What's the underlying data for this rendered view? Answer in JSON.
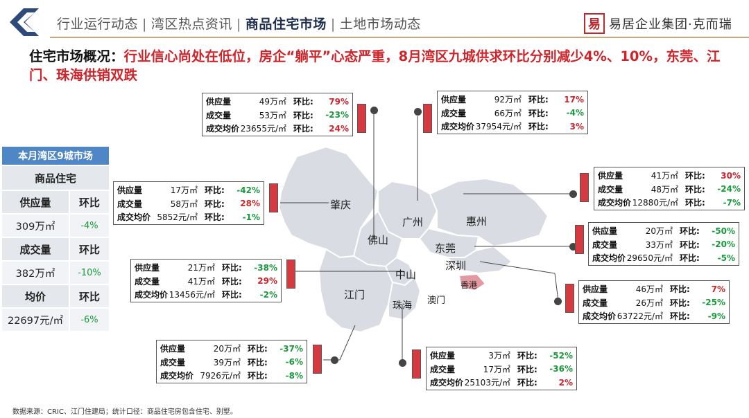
{
  "nav": {
    "items": [
      "行业运行动态",
      "湾区热点资讯",
      "商品住宅市场",
      "土地市场动态"
    ],
    "active_index": 2,
    "separator": "|"
  },
  "brand": {
    "seal": "易",
    "name": "易居企业集团·克而瑞"
  },
  "headline": {
    "lead": "住宅市场概况：",
    "body": "行业信心尚处在低位，房企“躺平”心态严重，8月湾区九城供求环比分别减少4%、10%，东莞、江门、珠海供销双跌"
  },
  "summary": {
    "title": "本月湾区9城市场",
    "subtitle": "商品住宅",
    "rows": [
      {
        "label": "供应量",
        "change_header": "环比",
        "value": "309万㎡",
        "change": "-4%"
      },
      {
        "label": "成交量",
        "change_header": "环比",
        "value": "382万㎡",
        "change": "-10%"
      },
      {
        "label": "均价",
        "change_header": "环比",
        "value": "22697元/㎡",
        "change": "-6%"
      }
    ]
  },
  "labels": {
    "supply": "供应量",
    "deal": "成交量",
    "price": "成交均价",
    "mom": "环比:"
  },
  "cities": {
    "zhaoqing": "肇庆",
    "guangzhou": "广州",
    "huizhou": "惠州",
    "foshan": "佛山",
    "dongguan": "东莞",
    "shenzhen": "深圳",
    "zhongshan": "中山",
    "jiangmen": "江门",
    "zhuhai": "珠海",
    "aomen": "澳门",
    "xianggang": "香港"
  },
  "boxes": [
    {
      "id": "foshan",
      "supply": "49万㎡",
      "supply_chg": "79%",
      "deal": "53万㎡",
      "deal_chg": "-23%",
      "price": "23655元/㎡",
      "price_chg": "24%"
    },
    {
      "id": "guangzhou",
      "supply": "92万㎡",
      "supply_chg": "17%",
      "deal": "66万㎡",
      "deal_chg": "-4%",
      "price": "37954元/㎡",
      "price_chg": "3%"
    },
    {
      "id": "huizhou",
      "supply": "41万㎡",
      "supply_chg": "30%",
      "deal": "48万㎡",
      "deal_chg": "-24%",
      "price": "12880元/㎡",
      "price_chg": "-7%"
    },
    {
      "id": "zhaoqing",
      "supply": "17万㎡",
      "supply_chg": "-42%",
      "deal": "58万㎡",
      "deal_chg": "28%",
      "price": "5852元/㎡",
      "price_chg": "-1%"
    },
    {
      "id": "dongguan",
      "supply": "20万㎡",
      "supply_chg": "-50%",
      "deal": "33万㎡",
      "deal_chg": "-20%",
      "price": "29650元/㎡",
      "price_chg": "-5%"
    },
    {
      "id": "zhongshan",
      "supply": "21万㎡",
      "supply_chg": "-38%",
      "deal": "41万㎡",
      "deal_chg": "29%",
      "price": "13456元/㎡",
      "price_chg": "-2%"
    },
    {
      "id": "shenzhen",
      "supply": "46万㎡",
      "supply_chg": "7%",
      "deal": "26万㎡",
      "deal_chg": "-25%",
      "price": "63722元/㎡",
      "price_chg": "-9%"
    },
    {
      "id": "jiangmen",
      "supply": "20万㎡",
      "supply_chg": "-37%",
      "deal": "39万㎡",
      "deal_chg": "-6%",
      "price": "7926元/㎡",
      "price_chg": "-8%"
    },
    {
      "id": "zhuhai",
      "supply": "3万㎡",
      "supply_chg": "-52%",
      "deal": "17万㎡",
      "deal_chg": "-36%",
      "price": "25103元/㎡",
      "price_chg": "2%"
    }
  ],
  "footnote": "数据来源：CRIC、江门住建局；统计口径：商品住宅房包含住宅、别墅。",
  "colors": {
    "up": "#d0242b",
    "down": "#1a9a3c",
    "accent": "#4f86c6",
    "bar": "#d43a3f",
    "map": "#d9dde3"
  }
}
